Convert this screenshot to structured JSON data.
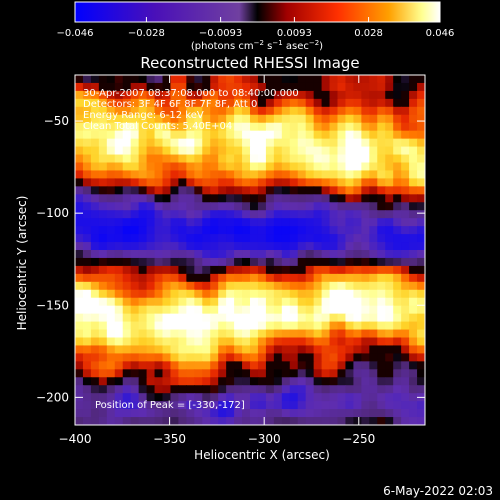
{
  "chart_data": {
    "type": "heatmap",
    "title": "Reconstructed RHESSI Image",
    "xlabel": "Heliocentric X (arcsec)",
    "ylabel": "Heliocentric Y (arcsec)",
    "xlim": [
      -400,
      -215
    ],
    "ylim": [
      -215,
      -25
    ],
    "x_ticks": [
      -400,
      -350,
      -300,
      -250
    ],
    "x_tick_labels": [
      "−400",
      "−350",
      "−300",
      "−250"
    ],
    "y_ticks": [
      -50,
      -100,
      -150,
      -200
    ],
    "y_tick_labels": [
      "−50",
      "−100",
      "−150",
      "−200"
    ],
    "colorbar": {
      "ticks": [
        -0.046,
        -0.028,
        -0.0093,
        0.0093,
        0.028,
        0.046
      ],
      "tick_labels": [
        "−0.046",
        "−0.028",
        "−0.0093",
        "0.0093",
        "0.028",
        "0.046"
      ],
      "unit_text": [
        "(photons cm",
        "−2",
        " s",
        "−1",
        " asec",
        "−2",
        ")"
      ],
      "colors": [
        "#0000ff",
        "#3f00b0",
        "#6030a0",
        "#000000",
        "#a00000",
        "#ff3000",
        "#ff9000",
        "#ffff80",
        "#ffffff"
      ]
    },
    "grid": false,
    "annotations": [
      "30-Apr-2007 08:37:08.000 to 08:40:00.000",
      "Detectors: 3F 4F 6F 8F 7F 8F, Att 0",
      "Energy Range: 6-12 keV",
      "Clean     Total Counts: 5.40E+04",
      "Position of Peak = [-330,-172]"
    ],
    "peak": [
      -330,
      -172
    ]
  },
  "footer": {
    "date": "6-May-2022 02:03"
  }
}
